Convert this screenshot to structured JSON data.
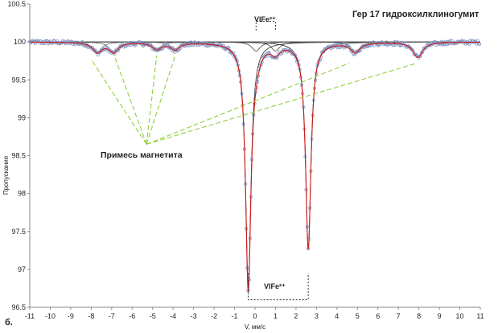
{
  "chart_data": {
    "type": "scatter",
    "title": "Гер 17 гидроксилклиногумит",
    "xlabel": "V, мм/с",
    "ylabel": "Пропускание",
    "panel_label": "б.",
    "xlim": [
      -11,
      11
    ],
    "ylim": [
      96.5,
      100.5
    ],
    "x_ticks": [
      "-11",
      "-10",
      "-9",
      "-8",
      "-7",
      "-6",
      "-5",
      "-4",
      "-3",
      "-2",
      "-1",
      "0",
      "1",
      "2",
      "3",
      "4",
      "5",
      "6",
      "7",
      "8",
      "9",
      "10",
      "11"
    ],
    "y_ticks": [
      "96.5",
      "97",
      "97.5",
      "98",
      "98.5",
      "99",
      "99.5",
      "100",
      "100.5"
    ],
    "annotations": {
      "fe3": "VIFe³⁺",
      "fe2": "VIFe²⁺",
      "magnetite": "Примесь магнетита"
    },
    "baseline": 100.0,
    "fe2_doublet": [
      {
        "center": -0.33,
        "depth": 3.25,
        "width": 0.16
      },
      {
        "center": 2.6,
        "depth": 2.72,
        "width": 0.16
      }
    ],
    "fe3_doublet": [
      {
        "center": 0.05,
        "depth": 0.12,
        "width": 0.25
      },
      {
        "center": 1.0,
        "depth": 0.12,
        "width": 0.25
      }
    ],
    "magnetite_sextet": [
      {
        "center": -7.7,
        "depth": 0.13,
        "width": 0.28
      },
      {
        "center": -6.9,
        "depth": 0.13,
        "width": 0.28
      },
      {
        "center": -4.8,
        "depth": 0.09,
        "width": 0.28
      },
      {
        "center": -3.9,
        "depth": 0.09,
        "width": 0.28
      },
      {
        "center": 4.9,
        "depth": 0.13,
        "width": 0.28
      },
      {
        "center": 7.95,
        "depth": 0.2,
        "width": 0.28
      }
    ],
    "pointer_targets_x": [
      -8.0,
      -6.9,
      -4.8,
      -3.9,
      4.6,
      7.9
    ],
    "pointer_targets_y": [
      99.77,
      99.84,
      99.82,
      99.82,
      99.72,
      99.72
    ],
    "pointer_origin": {
      "x": -5.3,
      "y": 98.65
    },
    "colors": {
      "data": "#7f95c4",
      "fit_total": "#d01818",
      "fe2_component": "#404040",
      "fe3_component": "#404040",
      "magnetite_component": "#555555",
      "pointer": "#8fd040"
    }
  }
}
